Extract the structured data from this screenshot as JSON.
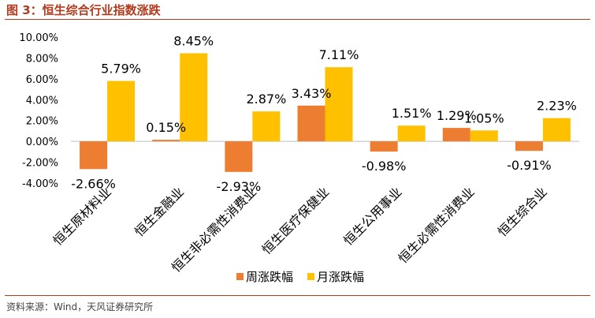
{
  "figure": {
    "title": "图 3：恒生综合行业指数涨跌",
    "source": "资料来源：Wind，天风证券研究所"
  },
  "chart_data": {
    "type": "bar",
    "title": "",
    "xlabel": "",
    "ylabel": "",
    "categories": [
      "恒生原材料业",
      "恒生金融业",
      "恒生非必需性消费业",
      "恒生医疗保健业",
      "恒生公用事业",
      "恒生必需性消费业",
      "恒生综合业"
    ],
    "series": [
      {
        "name": "周涨跌幅",
        "color": "#ed7d31",
        "values": [
          -2.66,
          0.15,
          -2.93,
          3.43,
          -0.98,
          1.29,
          -0.91
        ],
        "labels": [
          "-2.66%",
          "0.15%",
          "-2.93%",
          "3.43%",
          "-0.98%",
          "1.29%",
          "-0.91%"
        ]
      },
      {
        "name": "月涨跌幅",
        "color": "#ffc000",
        "values": [
          5.79,
          8.45,
          2.87,
          7.11,
          1.51,
          1.05,
          2.23
        ],
        "labels": [
          "5.79%",
          "8.45%",
          "2.87%",
          "7.11%",
          "1.51%",
          "1.05%",
          "2.23%"
        ]
      }
    ],
    "yticks": [
      10,
      8,
      6,
      4,
      2,
      0,
      -2,
      -4
    ],
    "ytick_labels": [
      "10.00%",
      "8.00%",
      "6.00%",
      "4.00%",
      "2.00%",
      "0.00%",
      "-2.00%",
      "-4.00%"
    ],
    "ylim": [
      -4,
      10
    ],
    "grid": false,
    "legend_position": "bottom"
  }
}
